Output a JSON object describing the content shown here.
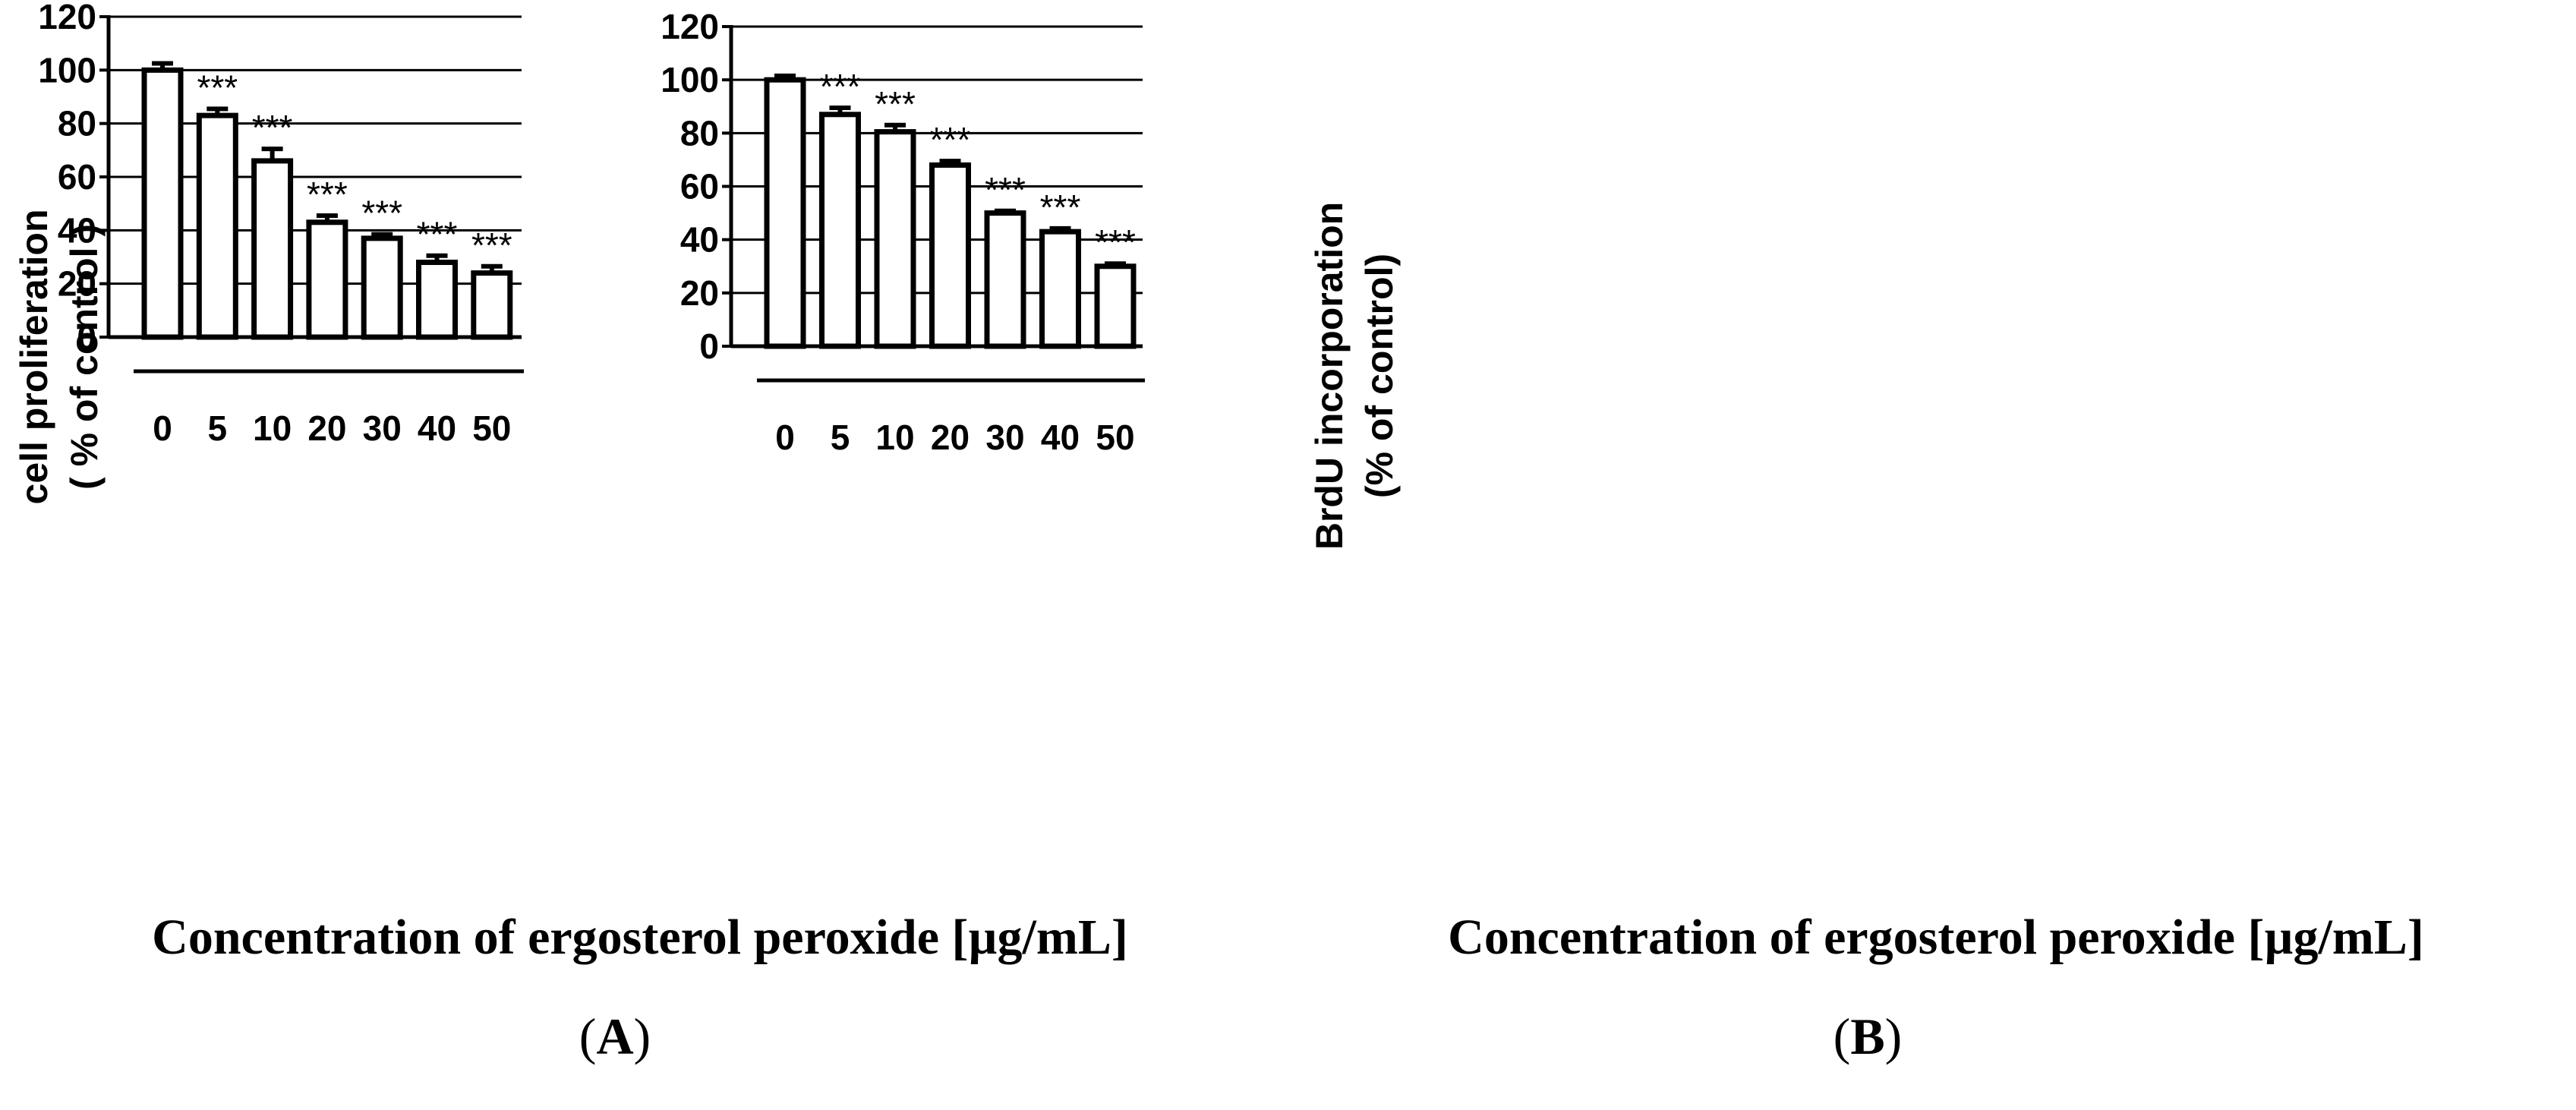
{
  "chart_data": [
    {
      "type": "bar",
      "panel": "A",
      "categories": [
        "0",
        "5",
        "10",
        "20",
        "30",
        "40",
        "50"
      ],
      "values": [
        100,
        83,
        66,
        43,
        37,
        28,
        24
      ],
      "errors": [
        2.5,
        2.5,
        4.5,
        2.5,
        1.5,
        2.5,
        2.5
      ],
      "significance": [
        "",
        "***",
        "***",
        "***",
        "***",
        "***",
        "***"
      ],
      "ylabel_line1": "cell proliferation",
      "ylabel_line2": "( % of control )",
      "xlabel": "Concentration of ergosterol peroxide [µg/mL]",
      "yticks": [
        0,
        20,
        40,
        60,
        80,
        100,
        120
      ],
      "ylim": [
        0,
        120
      ],
      "grid": true
    },
    {
      "type": "bar",
      "panel": "B",
      "categories": [
        "0",
        "5",
        "10",
        "20",
        "30",
        "40",
        "50"
      ],
      "values": [
        100,
        87,
        80.5,
        68,
        50,
        43,
        30
      ],
      "errors": [
        1.5,
        2.5,
        2.5,
        1.5,
        0.8,
        1.2,
        1.0
      ],
      "significance": [
        "",
        "***",
        "***",
        "***",
        "***",
        "***",
        "***"
      ],
      "ylabel_line1": "BrdU incorporation",
      "ylabel_line2": "(% of control)",
      "xlabel": "Concentration of ergosterol peroxide [µg/mL]",
      "yticks": [
        0,
        20,
        40,
        60,
        80,
        100,
        120
      ],
      "ylim": [
        0,
        120
      ],
      "grid": true
    }
  ]
}
